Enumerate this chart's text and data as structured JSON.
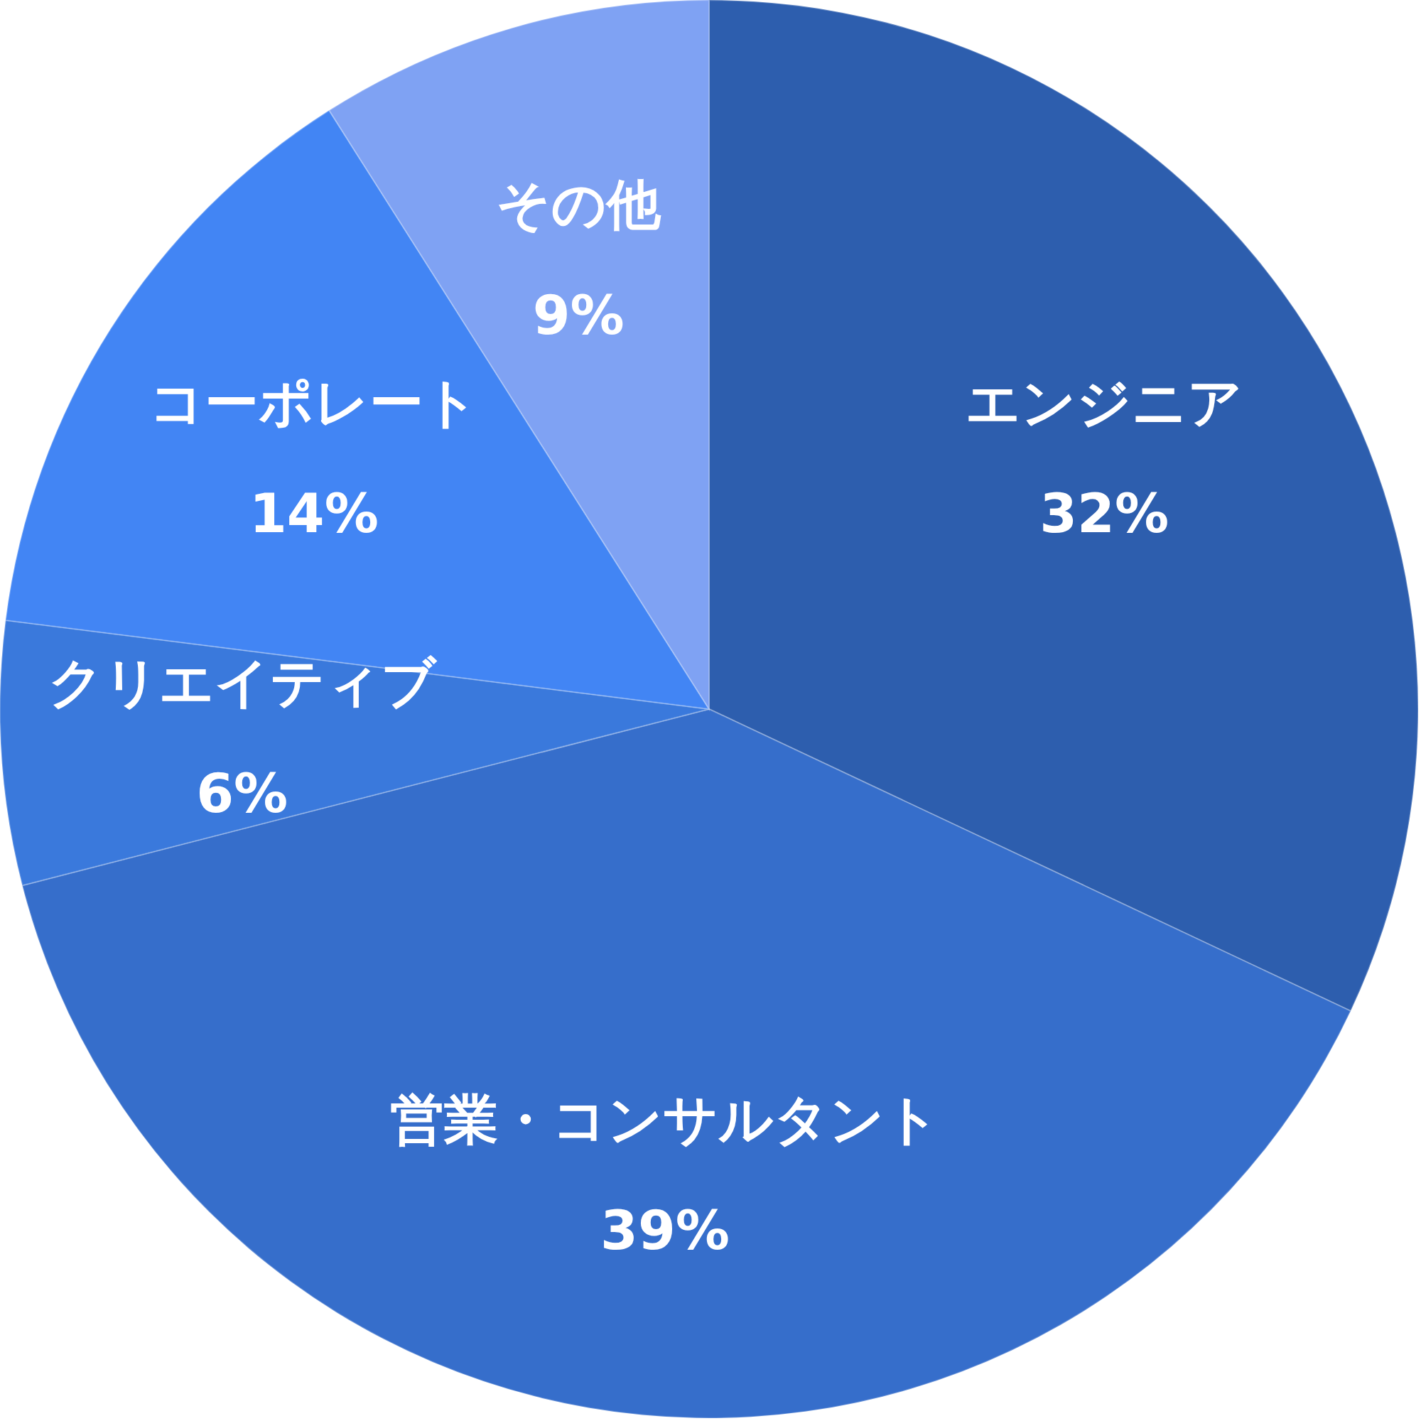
{
  "chart_data": {
    "type": "pie",
    "categories": [
      "エンジニア",
      "営業・コンサルタント",
      "クリエイティブ",
      "コーポレート",
      "その他"
    ],
    "values": [
      32,
      39,
      6,
      14,
      9
    ],
    "colors": [
      "#2d5eae",
      "#366ecb",
      "#3a79dc",
      "#4285f4",
      "#7fa2f3"
    ],
    "value_labels": [
      "32%",
      "39%",
      "6%",
      "14%",
      "9%"
    ],
    "legend": false
  }
}
